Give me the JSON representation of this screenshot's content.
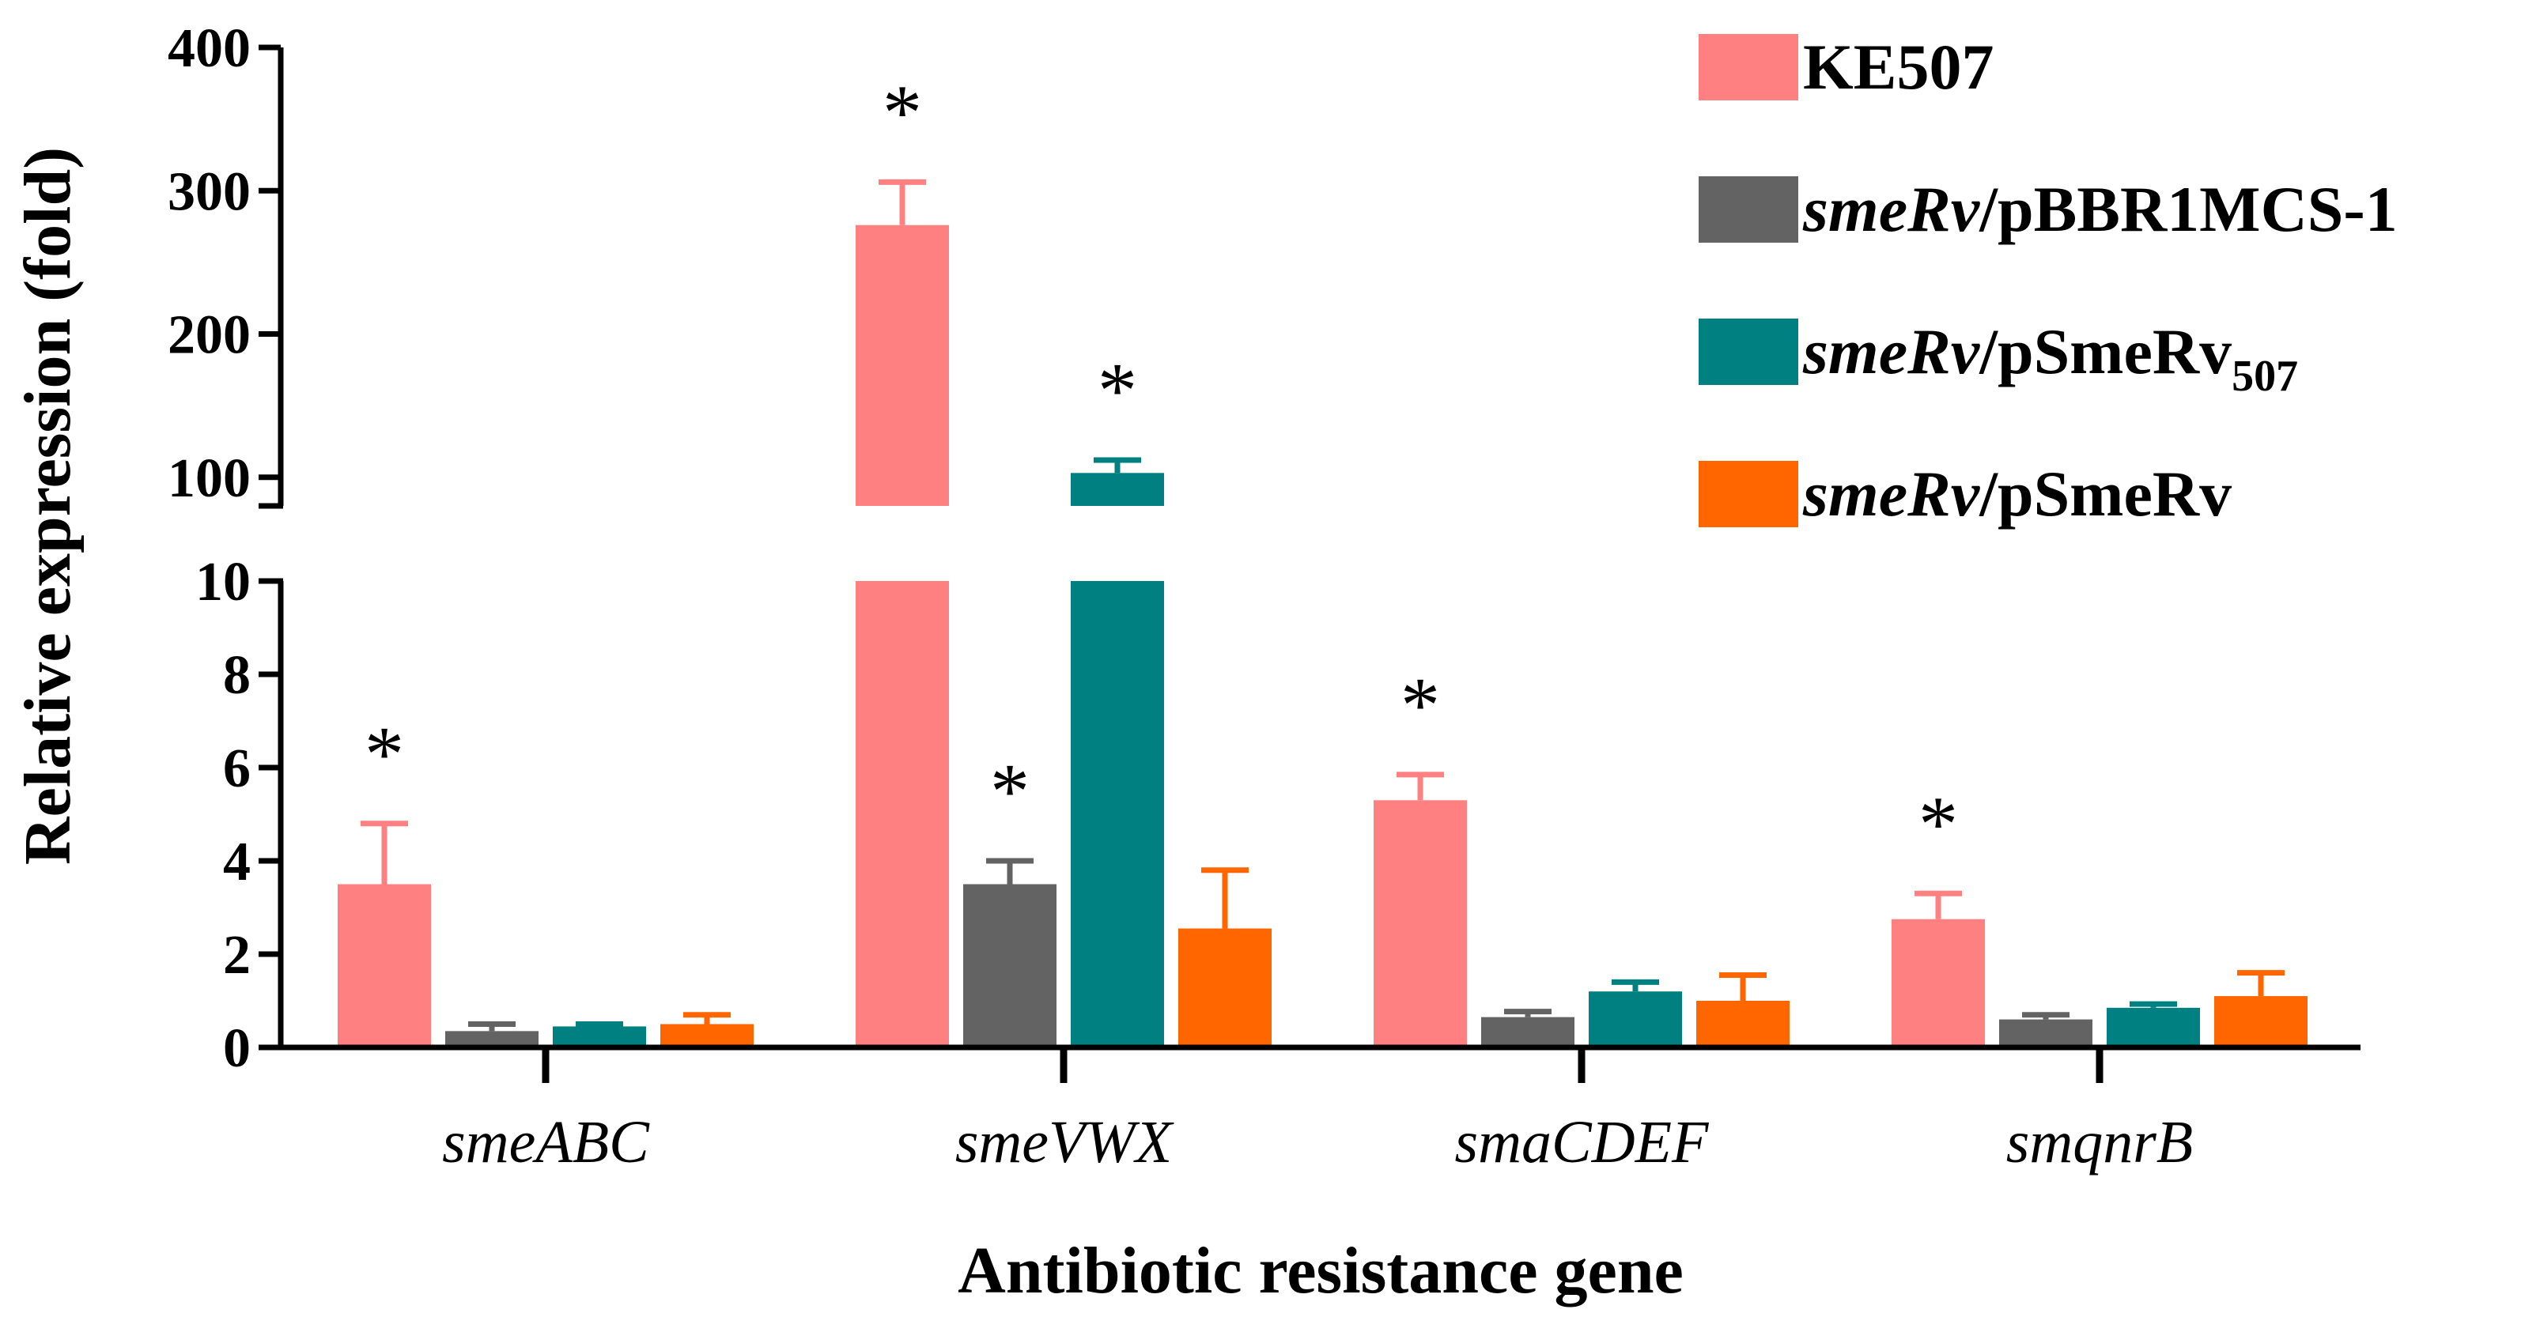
{
  "chart_data": {
    "type": "bar",
    "title": "",
    "xlabel": "Antibiotic resistance gene",
    "ylabel": "Relative expression (fold)",
    "categories": [
      "smeABC",
      "smeVWX",
      "smaCDEF",
      "smqnrB"
    ],
    "y_axis": {
      "broken": true,
      "lower_range": [
        0,
        10
      ],
      "upper_range": [
        80,
        400
      ],
      "lower_ticks": [
        "0",
        "2",
        "4",
        "6",
        "8",
        "10"
      ],
      "upper_ticks": [
        "100",
        "200",
        "300",
        "400"
      ]
    },
    "series": [
      {
        "name": "KE507",
        "name_italic": "",
        "name_rest": "KE507",
        "name_sub": "",
        "color": "#FF8080",
        "values": [
          3.5,
          276,
          5.3,
          2.75
        ],
        "errors": [
          1.3,
          30,
          0.55,
          0.55
        ]
      },
      {
        "name": "smeRv/pBBR1MCS-1",
        "name_italic": "smeRv",
        "name_rest": "/pBBR1MCS-1",
        "name_sub": "",
        "color": "#636363",
        "values": [
          0.35,
          3.5,
          0.65,
          0.6
        ],
        "errors": [
          0.15,
          0.5,
          0.12,
          0.1
        ]
      },
      {
        "name": "smeRv/pSmeRv507",
        "name_italic": "smeRv",
        "name_rest": "/pSmeRv",
        "name_sub": "507",
        "color": "#008080",
        "values": [
          0.45,
          103,
          1.2,
          0.85
        ],
        "errors": [
          0.05,
          9,
          0.2,
          0.08
        ]
      },
      {
        "name": "smeRv/pSmeRv",
        "name_italic": "smeRv",
        "name_rest": "/pSmeRv",
        "name_sub": "",
        "color": "#FF6600",
        "values": [
          0.5,
          2.55,
          1.0,
          1.1
        ],
        "errors": [
          0.2,
          1.25,
          0.55,
          0.5
        ]
      }
    ],
    "significance": [
      {
        "category": 0,
        "series": 0,
        "mark": "*"
      },
      {
        "category": 1,
        "series": 0,
        "mark": "*"
      },
      {
        "category": 1,
        "series": 1,
        "mark": "*"
      },
      {
        "category": 1,
        "series": 2,
        "mark": "*"
      },
      {
        "category": 2,
        "series": 0,
        "mark": "*"
      },
      {
        "category": 3,
        "series": 0,
        "mark": "*"
      }
    ],
    "legend_position": "top-right"
  }
}
